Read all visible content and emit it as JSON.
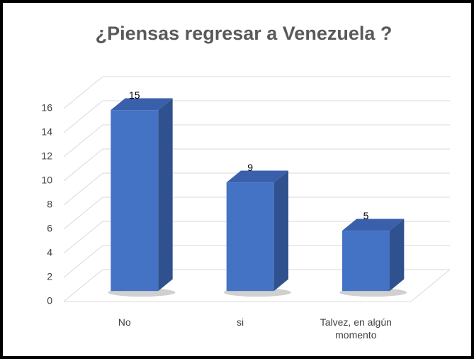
{
  "chart_data": {
    "type": "bar3d",
    "title": "¿Piensas regresar a Venezuela ?",
    "categories": [
      "No",
      "si",
      "Talvez, en algún momento"
    ],
    "values": [
      15,
      9,
      5
    ],
    "color": "#4472c4",
    "ylim": [
      0,
      16
    ],
    "yticks": [
      0,
      2,
      4,
      6,
      8,
      10,
      12,
      14,
      16
    ],
    "grid": true
  }
}
